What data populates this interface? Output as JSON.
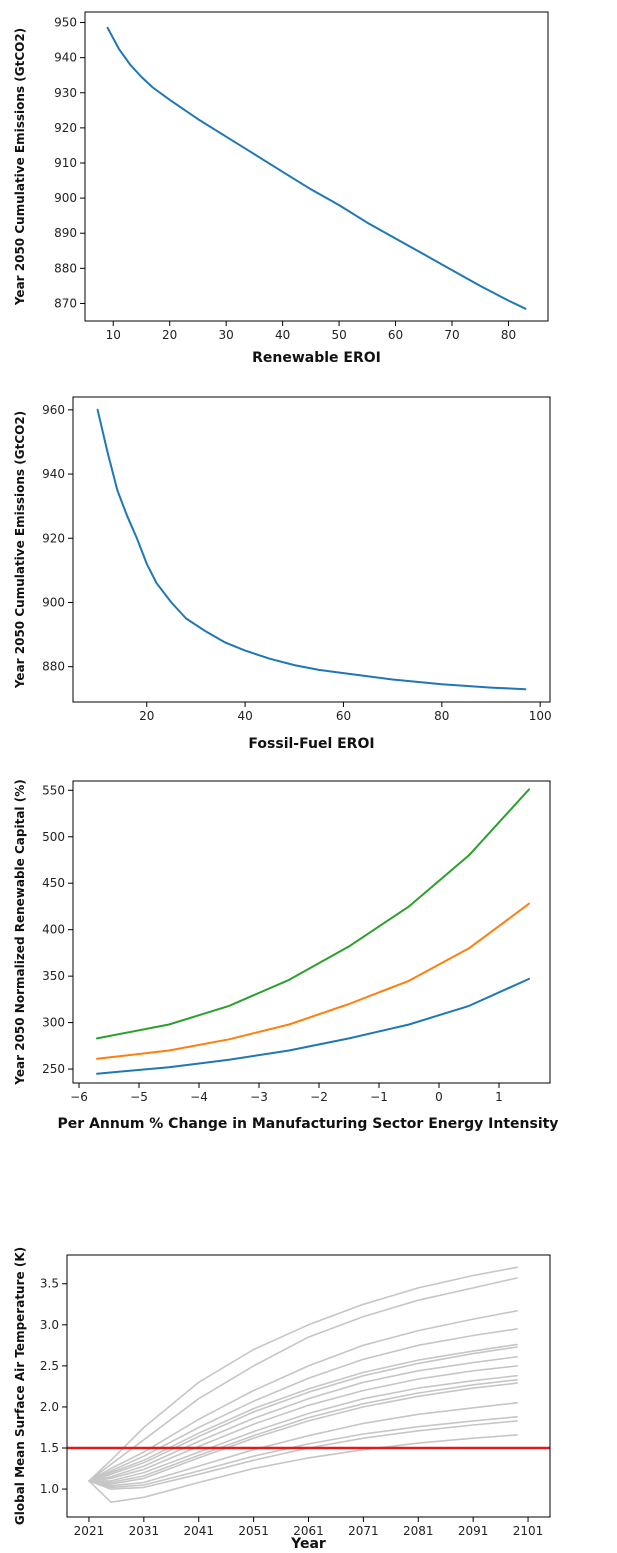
{
  "chart_data": [
    {
      "type": "line",
      "title": "",
      "xlabel": "Renewable EROI",
      "ylabel": "Year 2050 Cumulative Emissions (GtCO2)",
      "xlim": [
        5,
        87
      ],
      "ylim": [
        865,
        953
      ],
      "xticks": [
        10,
        20,
        30,
        40,
        50,
        60,
        70,
        80
      ],
      "yticks": [
        870,
        880,
        890,
        900,
        910,
        920,
        930,
        940,
        950
      ],
      "grid": false,
      "series": [
        {
          "color": "#1f77b4",
          "x": [
            9,
            11,
            13,
            15,
            17,
            20,
            25,
            30,
            35,
            40,
            45,
            50,
            55,
            60,
            65,
            70,
            75,
            80,
            83
          ],
          "y": [
            948.5,
            942.5,
            938,
            934.5,
            931.5,
            928,
            922.5,
            917.5,
            912.5,
            907.5,
            902.5,
            898,
            893,
            888.5,
            884,
            879.5,
            875,
            870.8,
            868.5
          ]
        }
      ]
    },
    {
      "type": "line",
      "title": "",
      "xlabel": "Fossil-Fuel EROI",
      "ylabel": "Year 2050 Cumulative Emissions (GtCO2)",
      "xlim": [
        5,
        102
      ],
      "ylim": [
        869,
        964
      ],
      "xticks": [
        20,
        40,
        60,
        80,
        100
      ],
      "yticks": [
        880,
        900,
        920,
        940,
        960
      ],
      "grid": false,
      "series": [
        {
          "color": "#1f77b4",
          "x": [
            10,
            12,
            14,
            16,
            18,
            20,
            22,
            25,
            28,
            32,
            36,
            40,
            45,
            50,
            55,
            60,
            70,
            80,
            90,
            97
          ],
          "y": [
            960,
            947,
            935,
            927,
            920,
            912,
            906,
            900,
            895,
            891,
            887.5,
            885,
            882.5,
            880.5,
            879,
            878,
            876,
            874.5,
            873.5,
            873
          ]
        }
      ]
    },
    {
      "type": "line",
      "title": "",
      "xlabel": "Per Annum % Change in Manufacturing Sector Energy Intensity",
      "ylabel": "Year 2050 Normalized Renewable Capital (%)",
      "xlim": [
        -6.1,
        1.85
      ],
      "ylim": [
        235,
        560
      ],
      "xticks": [
        -6,
        -5,
        -4,
        -3,
        -2,
        -1,
        0,
        1
      ],
      "xtick_labels": [
        "−6",
        "−5",
        "−4",
        "−3",
        "−2",
        "−1",
        "0",
        "1"
      ],
      "yticks": [
        250,
        300,
        350,
        400,
        450,
        500,
        550
      ],
      "grid": false,
      "series": [
        {
          "color": "#1f77b4",
          "x": [
            -5.7,
            -4.5,
            -3.5,
            -2.5,
            -1.5,
            -0.5,
            0.5,
            1.5
          ],
          "y": [
            245,
            252,
            260,
            270,
            283,
            298,
            318,
            347
          ]
        },
        {
          "color": "#ff7f0e",
          "x": [
            -5.7,
            -4.5,
            -3.5,
            -2.5,
            -1.5,
            -0.5,
            0.5,
            1.5
          ],
          "y": [
            261,
            270,
            282,
            298,
            320,
            345,
            380,
            428
          ]
        },
        {
          "color": "#2ca02c",
          "x": [
            -5.7,
            -4.5,
            -3.5,
            -2.5,
            -1.5,
            -0.5,
            0.5,
            1.5
          ],
          "y": [
            283,
            298,
            318,
            346,
            382,
            425,
            480,
            551
          ]
        }
      ]
    },
    {
      "type": "line",
      "title": "",
      "xlabel": "Year",
      "ylabel": "Global Mean Surface Air Temperature (K)",
      "xlim": [
        2017,
        2105
      ],
      "ylim": [
        0.66,
        3.85
      ],
      "xticks": [
        2021,
        2031,
        2041,
        2051,
        2061,
        2071,
        2081,
        2091,
        2101
      ],
      "yticks": [
        1.0,
        1.5,
        2.0,
        2.5,
        3.0,
        3.5
      ],
      "ytick_labels": [
        "1.0",
        "1.5",
        "2.0",
        "2.5",
        "3.0",
        "3.5"
      ],
      "grid": false,
      "hline": {
        "y": 1.5,
        "color": "#e31a1c"
      },
      "series_color": "#c6c6c6",
      "series": [
        {
          "x": [
            2021,
            2025,
            2031,
            2041,
            2051,
            2061,
            2071,
            2081,
            2091,
            2099
          ],
          "y": [
            1.1,
            1.35,
            1.75,
            2.3,
            2.7,
            3.0,
            3.25,
            3.45,
            3.6,
            3.7
          ]
        },
        {
          "x": [
            2021,
            2025,
            2031,
            2041,
            2051,
            2061,
            2071,
            2081,
            2091,
            2099
          ],
          "y": [
            1.1,
            1.3,
            1.6,
            2.1,
            2.5,
            2.85,
            3.1,
            3.3,
            3.45,
            3.57
          ]
        },
        {
          "x": [
            2021,
            2025,
            2031,
            2041,
            2051,
            2061,
            2071,
            2081,
            2091,
            2099
          ],
          "y": [
            1.1,
            1.25,
            1.45,
            1.85,
            2.2,
            2.5,
            2.75,
            2.93,
            3.07,
            3.17
          ]
        },
        {
          "x": [
            2021,
            2025,
            2031,
            2041,
            2051,
            2061,
            2071,
            2081,
            2091,
            2099
          ],
          "y": [
            1.1,
            1.22,
            1.4,
            1.75,
            2.07,
            2.35,
            2.58,
            2.75,
            2.87,
            2.95
          ]
        },
        {
          "x": [
            2021,
            2025,
            2031,
            2041,
            2051,
            2061,
            2071,
            2081,
            2091,
            2099
          ],
          "y": [
            1.1,
            1.2,
            1.35,
            1.68,
            1.98,
            2.22,
            2.42,
            2.57,
            2.68,
            2.76
          ]
        },
        {
          "x": [
            2021,
            2025,
            2031,
            2041,
            2051,
            2061,
            2071,
            2081,
            2091,
            2099
          ],
          "y": [
            1.1,
            1.18,
            1.32,
            1.64,
            1.94,
            2.18,
            2.38,
            2.53,
            2.65,
            2.73
          ]
        },
        {
          "x": [
            2021,
            2025,
            2031,
            2041,
            2051,
            2061,
            2071,
            2081,
            2091,
            2099
          ],
          "y": [
            1.1,
            1.15,
            1.28,
            1.58,
            1.86,
            2.1,
            2.3,
            2.44,
            2.54,
            2.61
          ]
        },
        {
          "x": [
            2021,
            2025,
            2031,
            2041,
            2051,
            2061,
            2071,
            2081,
            2091,
            2099
          ],
          "y": [
            1.1,
            1.13,
            1.24,
            1.52,
            1.79,
            2.02,
            2.2,
            2.34,
            2.44,
            2.5
          ]
        },
        {
          "x": [
            2021,
            2025,
            2031,
            2041,
            2051,
            2061,
            2071,
            2081,
            2091,
            2099
          ],
          "y": [
            1.1,
            1.1,
            1.2,
            1.45,
            1.7,
            1.92,
            2.1,
            2.23,
            2.32,
            2.38
          ]
        },
        {
          "x": [
            2021,
            2025,
            2031,
            2041,
            2051,
            2061,
            2071,
            2081,
            2091,
            2099
          ],
          "y": [
            1.1,
            1.08,
            1.16,
            1.41,
            1.65,
            1.87,
            2.04,
            2.17,
            2.27,
            2.33
          ]
        },
        {
          "x": [
            2021,
            2025,
            2031,
            2041,
            2051,
            2061,
            2071,
            2081,
            2091,
            2099
          ],
          "y": [
            1.1,
            1.06,
            1.13,
            1.38,
            1.62,
            1.83,
            2.0,
            2.13,
            2.23,
            2.29
          ]
        },
        {
          "x": [
            2021,
            2025,
            2031,
            2041,
            2051,
            2061,
            2071,
            2081,
            2091,
            2099
          ],
          "y": [
            1.1,
            1.04,
            1.08,
            1.28,
            1.48,
            1.65,
            1.8,
            1.91,
            1.99,
            2.05
          ]
        },
        {
          "x": [
            2021,
            2025,
            2031,
            2041,
            2051,
            2061,
            2071,
            2081,
            2091,
            2099
          ],
          "y": [
            1.1,
            1.02,
            1.05,
            1.22,
            1.4,
            1.55,
            1.67,
            1.76,
            1.83,
            1.88
          ]
        },
        {
          "x": [
            2021,
            2025,
            2031,
            2041,
            2051,
            2061,
            2071,
            2081,
            2091,
            2099
          ],
          "y": [
            1.1,
            1.0,
            1.02,
            1.18,
            1.35,
            1.5,
            1.62,
            1.71,
            1.78,
            1.83
          ]
        },
        {
          "x": [
            2021,
            2025,
            2031,
            2041,
            2051,
            2061,
            2071,
            2081,
            2091,
            2099
          ],
          "y": [
            1.1,
            0.84,
            0.9,
            1.08,
            1.25,
            1.38,
            1.48,
            1.56,
            1.62,
            1.66
          ]
        }
      ]
    }
  ]
}
